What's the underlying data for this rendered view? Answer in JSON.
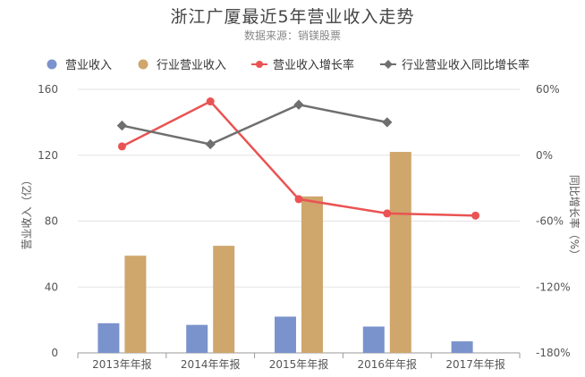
{
  "chart_data": {
    "type": "bar+line",
    "title": "浙江广厦最近5年营业收入走势",
    "subtitle": "数据来源：销镁股票",
    "categories": [
      "2013年年报",
      "2014年年报",
      "2015年年报",
      "2016年年报",
      "2017年年报"
    ],
    "series": [
      {
        "name": "营业收入",
        "type": "bar",
        "axis": "left",
        "color": "#7b93cc",
        "values": [
          18,
          17,
          22,
          16,
          7
        ]
      },
      {
        "name": "行业营业收入",
        "type": "bar",
        "axis": "left",
        "color": "#cfa66c",
        "values": [
          59,
          65,
          95,
          122,
          null
        ]
      },
      {
        "name": "营业收入增长率",
        "type": "line",
        "axis": "right",
        "color": "#ea5353",
        "values": [
          8,
          49,
          -40,
          -53,
          -55
        ]
      },
      {
        "name": "行业营业收入同比增长率",
        "type": "line",
        "axis": "right",
        "color": "#6f6f6f",
        "values": [
          27,
          10,
          46,
          30,
          null
        ]
      }
    ],
    "ylabel": "营业收入（亿）",
    "y2label": "同比增长率（%）",
    "ylim": [
      0,
      160
    ],
    "yticks": [
      0,
      40,
      80,
      120,
      160
    ],
    "y2lim": [
      -180,
      60
    ],
    "y2ticks": [
      "-180%",
      "-120%",
      "-60%",
      "0%",
      "60%"
    ],
    "y2tick_values": [
      -180,
      -120,
      -60,
      0,
      60
    ],
    "legend_position": "top"
  }
}
